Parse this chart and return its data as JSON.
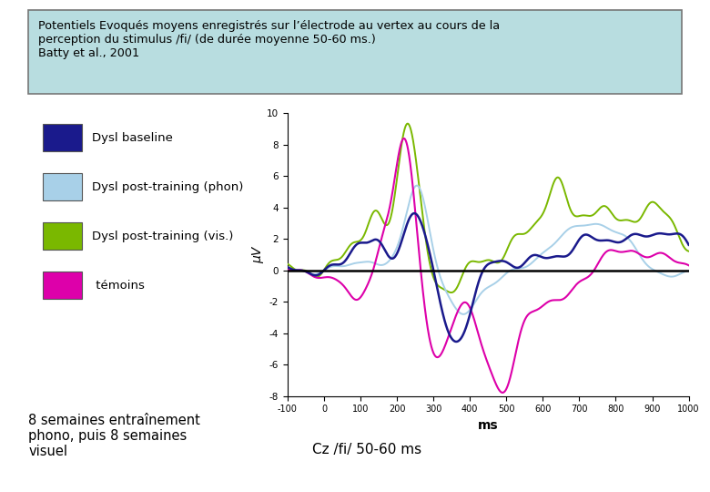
{
  "title_box_text": "Potentiels Evoqués moyens enregistrés sur l’électrode au vertex au cours de la\nperception du stimulus /fi/ (de durée moyenne 50-60 ms.)\nBatty et al., 2001",
  "ylabel": "µV",
  "xlabel": "ms",
  "xlim": [
    -100,
    1000
  ],
  "ylim": [
    -8,
    10
  ],
  "yticks": [
    -8,
    -6,
    -4,
    -2,
    0,
    2,
    4,
    6,
    8,
    10
  ],
  "xticks": [
    -100,
    0,
    100,
    200,
    300,
    400,
    500,
    600,
    700,
    800,
    900,
    1000
  ],
  "xtick_labels": [
    "-100",
    "0",
    "100",
    "200",
    "300",
    "400",
    "500",
    "600",
    "700",
    "800",
    "900",
    "1000"
  ],
  "colors": {
    "dysl_baseline": "#1a1a8c",
    "dysl_phon": "#a8d0e8",
    "dysl_vis": "#7ab800",
    "temoins": "#dd00aa"
  },
  "legend_labels": [
    "Dysl baseline",
    "Dysl post-training (phon)",
    "Dysl post-training (vis.)",
    " témoins"
  ],
  "bottom_left_text": "8 semaines entraînement\nphono, puis 8 semaines\nvisuel",
  "bottom_right_text": "Cz /fi/ 50-60 ms",
  "background_color": "#ffffff",
  "title_box_color": "#b8dde0"
}
